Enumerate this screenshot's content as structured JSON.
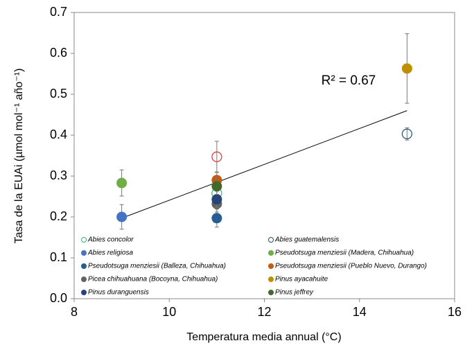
{
  "chart_data": {
    "type": "scatter",
    "xlabel": "Temperatura media annual (°C)",
    "ylabel": "Tasa de la EUAi (µmol mol⁻¹ año⁻¹)",
    "xlim": [
      8,
      16
    ],
    "xticks": [
      8,
      10,
      12,
      14,
      16
    ],
    "ylim": [
      0,
      0.7
    ],
    "yticks": [
      {
        "value": 0,
        "label": "0.0"
      },
      0.1,
      0.2,
      0.3,
      0.4,
      0.5,
      0.6,
      0.7
    ],
    "annotation": "R² = 0.67",
    "trendline": {
      "color": "#000000",
      "x": [
        9,
        15
      ],
      "values": [
        0.197,
        0.46
      ]
    },
    "series": [
      {
        "name": "Abies concolor",
        "color": "#2eb872",
        "marker": "open",
        "x": [
          11
        ],
        "values": [
          0.258
        ],
        "errors": [
          0.02
        ]
      },
      {
        "name": "Abies guatemalensis",
        "color": "#1f4e79",
        "marker": "open",
        "x": [
          15
        ],
        "values": [
          0.403
        ],
        "errors": [
          0.015
        ]
      },
      {
        "name": "Abies religiosa",
        "color": "#4472c4",
        "marker": "filled",
        "x": [
          9
        ],
        "values": [
          0.2
        ],
        "errors": [
          0.03
        ]
      },
      {
        "name": "Pseudotsuga menziesii (Madera, Chihuahua)",
        "color": "#70ad47",
        "marker": "filled",
        "x": [
          9
        ],
        "values": [
          0.283
        ],
        "errors": [
          0.032
        ]
      },
      {
        "name": "Pseudotsuga menziesii (Balleza, Chihuahua)",
        "color": "#255e91",
        "marker": "filled",
        "x": [
          11
        ],
        "values": [
          0.197
        ],
        "errors": [
          0.022
        ]
      },
      {
        "name": "Pseudotsuga menziesii (Pueblo Nuevo, Durango)",
        "color": "#c55a11",
        "marker": "filled",
        "x": [
          11
        ],
        "values": [
          0.29
        ],
        "errors": [
          0.02
        ]
      },
      {
        "name": "Picea chihuahuana (Bocoyna, Chihuahua)",
        "color": "#636363",
        "marker": "filled",
        "x": [
          11
        ],
        "values": [
          0.232
        ],
        "errors": [
          0.02
        ]
      },
      {
        "name": "Pinus ayacahuite",
        "color": "#bf8f00",
        "marker": "filled",
        "x": [
          15
        ],
        "values": [
          0.563
        ],
        "errors": [
          0.085
        ]
      },
      {
        "name": "Pinus duranguensis",
        "color": "#264478",
        "marker": "filled",
        "x": [
          11
        ],
        "values": [
          0.243
        ],
        "errors": [
          0.02
        ]
      },
      {
        "name": "Pinus jeffrey",
        "color": "#43682b",
        "marker": "filled",
        "x": [
          11
        ],
        "values": [
          0.275
        ],
        "errors": [
          0.02
        ]
      },
      {
        "color": "#e03030",
        "marker": "open",
        "x": [
          11
        ],
        "values": [
          0.347
        ],
        "errors": [
          0.038
        ]
      }
    ]
  }
}
